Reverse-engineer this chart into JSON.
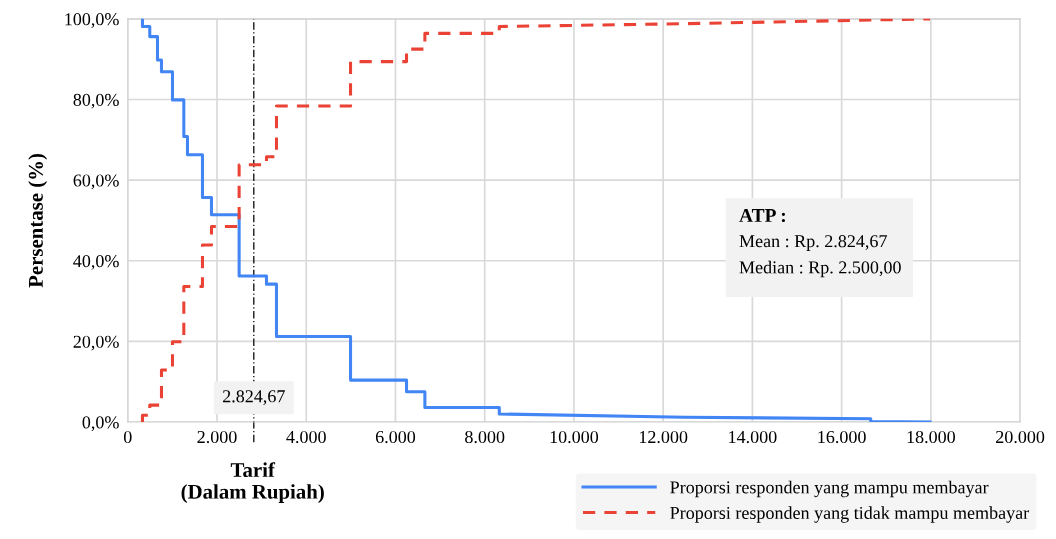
{
  "chart_data": {
    "type": "line",
    "xlabel": "Tarif\n(Dalam Rupiah)",
    "ylabel": "Persentase (%)",
    "xlim": [
      0,
      20000
    ],
    "xticks": [
      {
        "value": 0,
        "label": "0"
      },
      {
        "value": 2000,
        "label": "2.000"
      },
      {
        "value": 4000,
        "label": "4.000"
      },
      {
        "value": 6000,
        "label": "6.000"
      },
      {
        "value": 8000,
        "label": "8.000"
      },
      {
        "value": 10000,
        "label": "10.000"
      },
      {
        "value": 12000,
        "label": "12.000"
      },
      {
        "value": 14000,
        "label": "14.000"
      },
      {
        "value": 16000,
        "label": "16.000"
      },
      {
        "value": 18000,
        "label": "18.000"
      },
      {
        "value": 20000,
        "label": "20.000"
      }
    ],
    "ylim": [
      0,
      100
    ],
    "yticks": [
      {
        "value": 0,
        "label": "0,0%"
      },
      {
        "value": 20,
        "label": "20,0%"
      },
      {
        "value": 40,
        "label": "40,0%"
      },
      {
        "value": 60,
        "label": "60,0%"
      },
      {
        "value": 80,
        "label": "80,0%"
      },
      {
        "value": 100,
        "label": "100,0%"
      }
    ],
    "grid": true,
    "legend": "bottom right",
    "marker": "none",
    "series": [
      {
        "name": "Proporsi responden yang mampu membayar",
        "color": "#4285f4",
        "line_style": "solid",
        "x": [
          329,
          329,
          493,
          493,
          666,
          666,
          755,
          755,
          1002,
          1002,
          1256,
          1256,
          1338,
          1338,
          1674,
          1674,
          1876,
          1876,
          2496,
          2496,
          3109,
          3109,
          3333,
          3333,
          4993,
          4993,
          6248,
          6248,
          6659,
          6659,
          8327,
          8327,
          12489,
          16652,
          16652,
          17982
        ],
        "values": [
          100,
          98.1,
          98.1,
          95.6,
          95.6,
          89.8,
          89.8,
          86.9,
          86.9,
          79.9,
          79.9,
          70.8,
          70.8,
          66.3,
          66.3,
          55.7,
          55.7,
          51.4,
          51.4,
          36.2,
          36.2,
          34.2,
          34.2,
          21.2,
          21.2,
          10.4,
          10.4,
          7.5,
          7.5,
          3.6,
          3.6,
          2.0,
          1.2,
          0.8,
          0.1,
          0
        ]
      },
      {
        "name": "Proporsi responden yang tidak mampu membayar",
        "color": "#ea4335",
        "line_style": "dashed",
        "x": [
          329,
          329,
          493,
          493,
          755,
          755,
          1002,
          1002,
          1256,
          1256,
          1674,
          1674,
          1876,
          1876,
          2496,
          2496,
          3109,
          3109,
          3333,
          3333,
          4993,
          4993,
          6248,
          6248,
          6659,
          6659,
          8327,
          8327,
          12489,
          17982
        ],
        "values": [
          0,
          1.7,
          1.7,
          4.2,
          4.2,
          12.9,
          12.9,
          19.9,
          19.9,
          33.6,
          33.6,
          43.9,
          43.9,
          48.5,
          48.5,
          63.8,
          63.8,
          65.8,
          65.8,
          78.4,
          78.4,
          89.4,
          89.4,
          92.5,
          92.5,
          96.4,
          96.4,
          98.1,
          98.8,
          100
        ]
      }
    ],
    "ref_lines": [
      {
        "axis": "x",
        "value": 2824.67,
        "label": "2.824,67",
        "color": "#000000",
        "line_style": "dashdot"
      }
    ],
    "annotations": [
      "ATP :",
      "Mean : Rp. 2.824,67",
      "Median : Rp. 2.500,00"
    ]
  }
}
